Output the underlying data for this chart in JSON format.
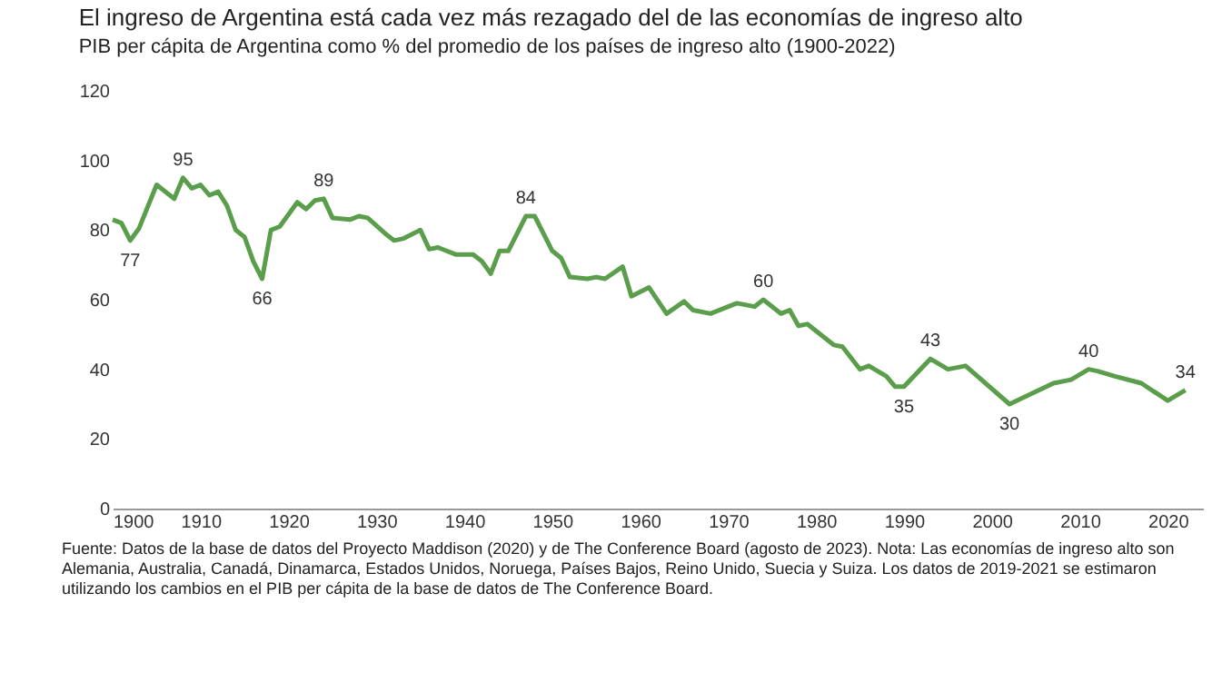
{
  "chart_data": {
    "type": "line",
    "title": "El ingreso de Argentina está cada vez más rezagado del de las economías de ingreso alto",
    "subtitle": "PIB per cápita de Argentina como % del promedio de los países de ingreso alto (1900-2022)",
    "x": [
      1900,
      1901,
      1902,
      1903,
      1905,
      1907,
      1908,
      1909,
      1910,
      1911,
      1912,
      1913,
      1914,
      1915,
      1916,
      1917,
      1918,
      1919,
      1921,
      1922,
      1923,
      1924,
      1925,
      1927,
      1928,
      1929,
      1931,
      1932,
      1933,
      1935,
      1936,
      1937,
      1939,
      1941,
      1942,
      1943,
      1944,
      1945,
      1947,
      1948,
      1950,
      1951,
      1952,
      1954,
      1955,
      1956,
      1958,
      1959,
      1961,
      1963,
      1965,
      1966,
      1968,
      1970,
      1971,
      1973,
      1974,
      1976,
      1977,
      1978,
      1979,
      1982,
      1983,
      1985,
      1986,
      1988,
      1989,
      1990,
      1993,
      1995,
      1997,
      2002,
      2007,
      2009,
      2011,
      2012,
      2014,
      2017,
      2020,
      2022
    ],
    "series": [
      {
        "color": "#5a9e4b",
        "values": [
          83,
          82,
          77,
          80.5,
          93,
          89,
          95,
          92,
          93,
          90,
          91,
          87,
          80,
          78,
          71,
          66,
          80,
          81,
          88,
          86,
          88.5,
          89,
          83.5,
          83,
          84,
          83.5,
          79,
          77,
          77.5,
          80,
          74.5,
          75,
          73,
          73,
          71,
          67.5,
          74,
          74,
          84,
          84,
          74,
          72,
          66.5,
          66,
          66.5,
          66,
          69.5,
          61,
          63.5,
          56,
          59.5,
          57,
          56,
          58,
          59,
          58,
          60,
          56,
          57,
          52.5,
          53,
          47,
          46.5,
          40,
          41,
          38,
          35,
          35,
          43,
          40,
          41,
          30,
          36,
          37,
          40,
          39.5,
          38,
          36,
          31,
          34
        ]
      }
    ],
    "xlim": [
      1900,
      2024
    ],
    "xticks": [
      1900,
      1910,
      1920,
      1930,
      1940,
      1950,
      1960,
      1970,
      1980,
      1990,
      2000,
      2010,
      2020
    ],
    "ylim": [
      0,
      120
    ],
    "yticks": [
      0,
      20,
      40,
      60,
      80,
      100,
      120
    ],
    "grid": false,
    "line_style": "solid",
    "marker": "none",
    "annotations": [
      {
        "text": "77",
        "x": 1902,
        "y": 77
      },
      {
        "text": "95",
        "x": 1908,
        "y": 95
      },
      {
        "text": "66",
        "x": 1917,
        "y": 66
      },
      {
        "text": "89",
        "x": 1924,
        "y": 89
      },
      {
        "text": "84",
        "x": 1947,
        "y": 84
      },
      {
        "text": "60",
        "x": 1974,
        "y": 60
      },
      {
        "text": "35",
        "x": 1990,
        "y": 35
      },
      {
        "text": "43",
        "x": 1993,
        "y": 43
      },
      {
        "text": "30",
        "x": 2002,
        "y": 30
      },
      {
        "text": "40",
        "x": 2011,
        "y": 40
      },
      {
        "text": "34",
        "x": 2022,
        "y": 34
      },
      "Fuente: Datos de la base de datos del Proyecto Maddison (2020) y de The Conference Board (agosto de 2023). Nota: Las economías de ingreso alto son Alemania, Australia, Canadá, Dinamarca, Estados Unidos, Noruega, Países Bajos, Reino Unido, Suecia y Suiza. Los datos de 2019-2021 se estimaron utilizando los cambios en el PIB per cápita de la base de datos de The Conference Board."
    ]
  }
}
